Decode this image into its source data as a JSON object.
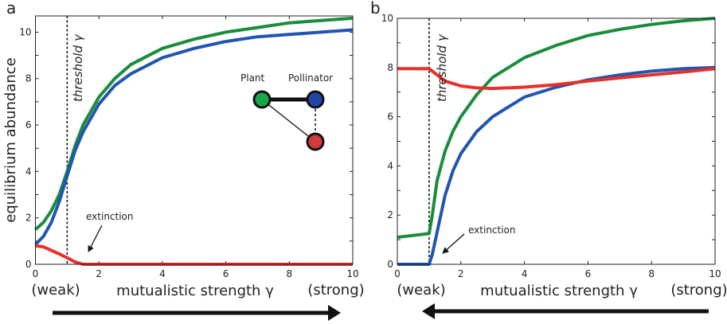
{
  "chart_data": [
    {
      "type": "line",
      "panel_label": "a",
      "ylabel": "equilibrium abundance",
      "xlabel": "mutualistic strength γ",
      "x_left_note": "(weak)",
      "x_right_note": "(strong)",
      "xlim": [
        0,
        10
      ],
      "ylim": [
        0,
        10.7
      ],
      "xticks": [
        "0",
        "2",
        "4",
        "6",
        "8",
        "10"
      ],
      "yticks": [
        "0",
        "2",
        "4",
        "6",
        "8",
        "10"
      ],
      "threshold": {
        "x": 1,
        "label": "threshold γ"
      },
      "annotation": "extinction",
      "direction_arrow": "right",
      "inset": {
        "plant_label": "Plant",
        "pollinator_label": "Pollinator"
      },
      "series": [
        {
          "color": "#1a8c3c",
          "x": [
            0,
            0.25,
            0.5,
            0.75,
            1,
            1.25,
            1.5,
            2,
            2.5,
            3,
            4,
            5,
            6,
            7,
            8,
            9,
            10
          ],
          "y": [
            1.5,
            1.8,
            2.3,
            3.0,
            4.0,
            5.1,
            6.0,
            7.2,
            8.0,
            8.6,
            9.3,
            9.7,
            10.0,
            10.2,
            10.4,
            10.5,
            10.6
          ]
        },
        {
          "color": "#2255b0",
          "x": [
            0,
            0.25,
            0.5,
            0.75,
            1,
            1.25,
            1.5,
            2,
            2.5,
            3,
            4,
            5,
            6,
            7,
            8,
            9,
            10
          ],
          "y": [
            0.85,
            1.2,
            1.8,
            2.7,
            3.8,
            4.9,
            5.7,
            6.9,
            7.7,
            8.2,
            8.9,
            9.3,
            9.6,
            9.8,
            9.9,
            10.0,
            10.1
          ]
        },
        {
          "color": "#e8302a",
          "x": [
            0,
            0.25,
            0.5,
            0.75,
            1,
            1.25,
            1.5,
            2,
            4,
            6,
            8,
            10
          ],
          "y": [
            0.8,
            0.75,
            0.6,
            0.45,
            0.28,
            0.1,
            0.0,
            0,
            0,
            0,
            0,
            0
          ]
        }
      ]
    },
    {
      "type": "line",
      "panel_label": "b",
      "xlabel": "mutualistic strength γ",
      "x_left_note": "(weak)",
      "x_right_note": "(strong)",
      "xlim": [
        0,
        10
      ],
      "ylim": [
        0,
        10
      ],
      "xticks": [
        "0",
        "2",
        "4",
        "6",
        "8",
        "10"
      ],
      "yticks": [
        "0",
        "2",
        "4",
        "6",
        "8",
        "10"
      ],
      "threshold": {
        "x": 1,
        "label": "threshold γ"
      },
      "annotation": "extinction",
      "direction_arrow": "left",
      "series": [
        {
          "color": "#1a8c3c",
          "x": [
            0,
            1,
            1.1,
            1.25,
            1.5,
            1.75,
            2,
            2.5,
            3,
            4,
            5,
            6,
            7,
            8,
            9,
            10
          ],
          "y": [
            1.1,
            1.25,
            2.0,
            3.4,
            4.6,
            5.4,
            6.0,
            6.9,
            7.6,
            8.4,
            8.9,
            9.3,
            9.55,
            9.75,
            9.9,
            10.0
          ]
        },
        {
          "color": "#2255b0",
          "x": [
            0,
            1,
            1.1,
            1.25,
            1.5,
            1.75,
            2,
            2.5,
            3,
            4,
            5,
            6,
            7,
            8,
            9,
            10
          ],
          "y": [
            0,
            0,
            0.4,
            1.3,
            2.8,
            3.8,
            4.5,
            5.4,
            6.0,
            6.8,
            7.2,
            7.5,
            7.7,
            7.85,
            7.95,
            8.0
          ]
        },
        {
          "color": "#e8302a",
          "x": [
            0,
            1,
            1.25,
            1.5,
            2,
            2.5,
            3,
            4,
            5,
            6,
            7,
            8,
            9,
            10
          ],
          "y": [
            7.95,
            7.95,
            7.7,
            7.45,
            7.25,
            7.17,
            7.15,
            7.2,
            7.3,
            7.45,
            7.58,
            7.7,
            7.82,
            7.95
          ]
        }
      ]
    }
  ]
}
